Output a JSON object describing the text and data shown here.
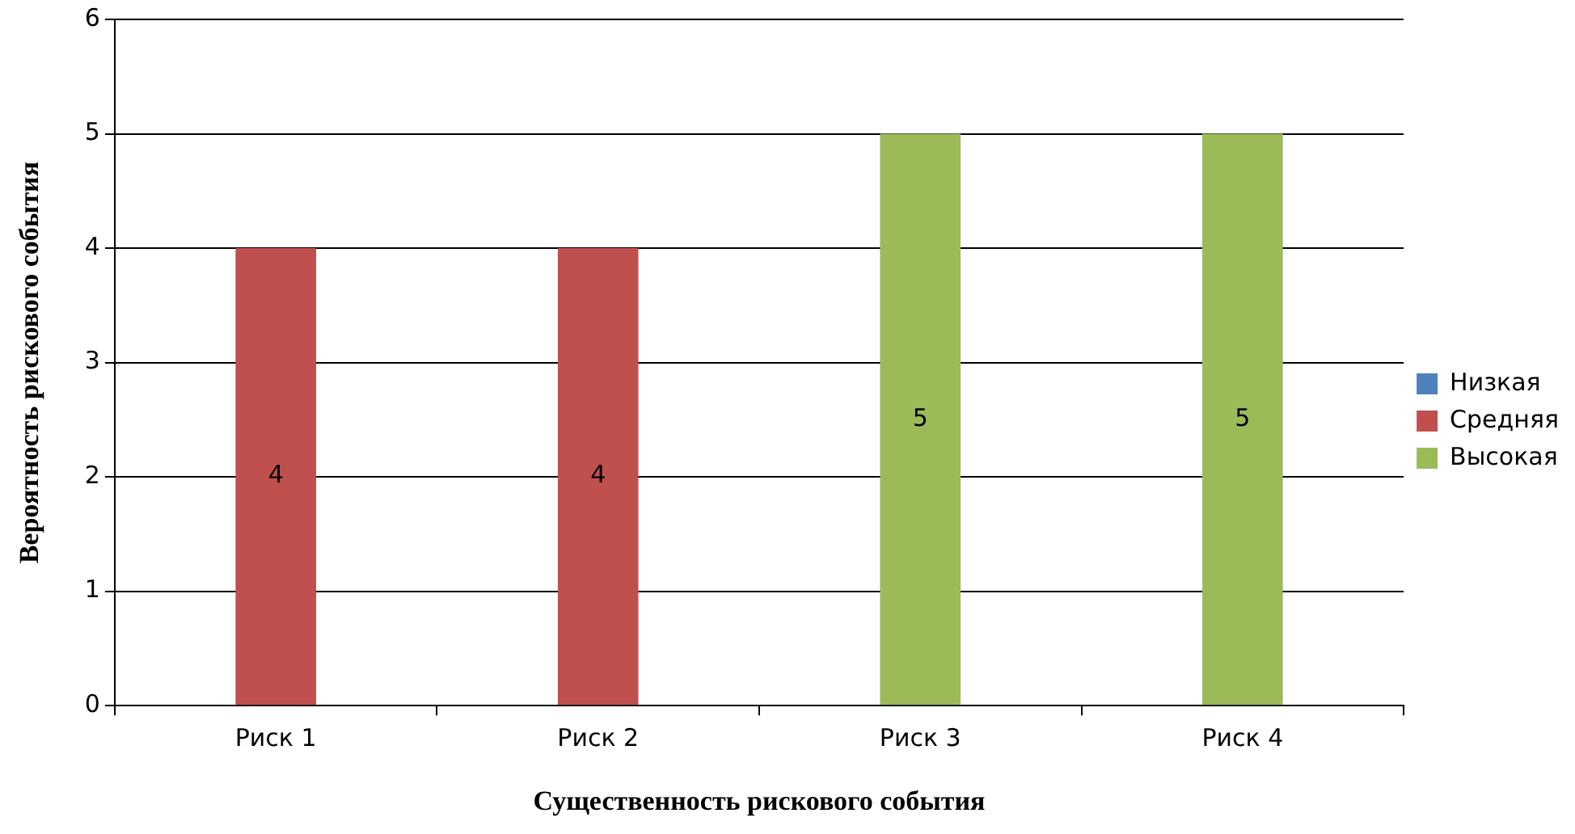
{
  "chart_data": {
    "type": "bar",
    "xlabel": "Существенность рискового события",
    "ylabel": "Вероятность рискового события",
    "categories": [
      "Риск 1",
      "Риск 2",
      "Риск 3",
      "Риск 4"
    ],
    "series": [
      {
        "name": "Низкая",
        "color": "#4f81bd",
        "values": [
          null,
          null,
          null,
          null
        ]
      },
      {
        "name": "Средняя",
        "color": "#c0504d",
        "values": [
          4,
          4,
          null,
          null
        ]
      },
      {
        "name": "Высокая",
        "color": "#9bbb59",
        "values": [
          null,
          null,
          5,
          5
        ]
      }
    ],
    "stacked": true,
    "ylim": [
      0,
      6
    ],
    "yticks": [
      0,
      1,
      2,
      3,
      4,
      5,
      6
    ],
    "grid": "y",
    "legend": "right",
    "data_labels": true
  }
}
